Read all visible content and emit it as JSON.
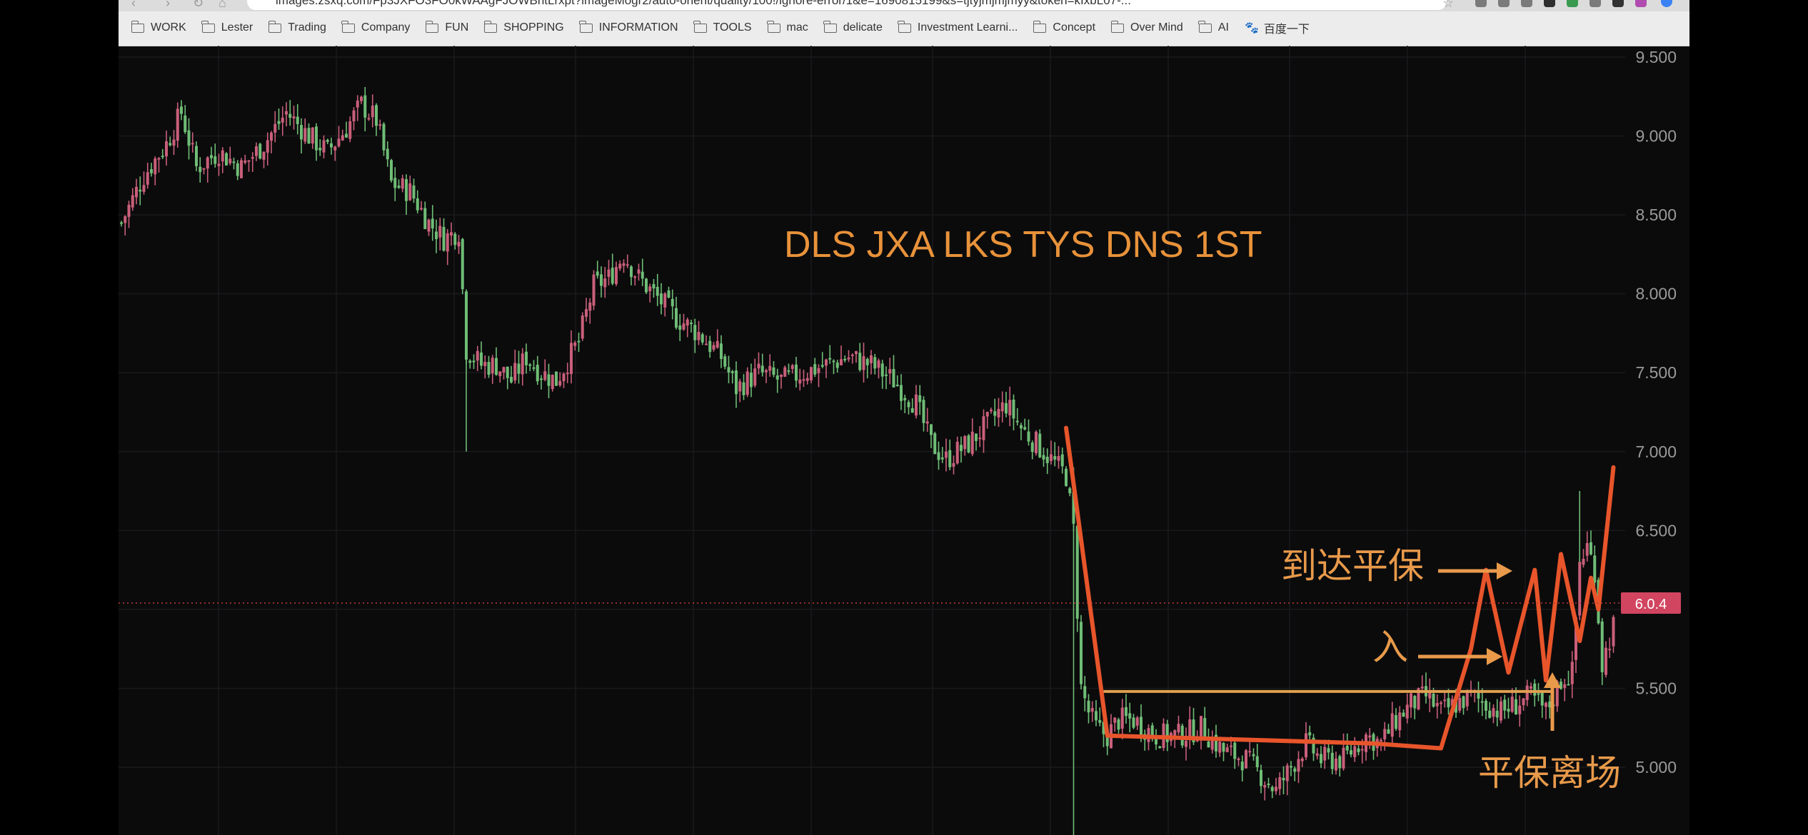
{
  "browser": {
    "url_text": "images.zsxq.com/Fp3JXFO3FO0kWAAgFJOWBhtLrxpt?imageMogr2/auto-orient/quality/100!/ignore-error/1&e=1690815199&s=tjtyjmjmjmyy&token=kIxbL07-...",
    "bookmarks": [
      {
        "label": "WORK",
        "icon": "folder-icon"
      },
      {
        "label": "Lester",
        "icon": "folder-icon"
      },
      {
        "label": "Trading",
        "icon": "folder-icon"
      },
      {
        "label": "Company",
        "icon": "folder-icon"
      },
      {
        "label": "FUN",
        "icon": "folder-icon"
      },
      {
        "label": "SHOPPING",
        "icon": "folder-icon"
      },
      {
        "label": "INFORMATION",
        "icon": "folder-icon"
      },
      {
        "label": "TOOLS",
        "icon": "folder-icon"
      },
      {
        "label": "mac",
        "icon": "folder-icon"
      },
      {
        "label": "delicate",
        "icon": "folder-icon"
      },
      {
        "label": "Investment Learni...",
        "icon": "folder-icon"
      },
      {
        "label": "Concept",
        "icon": "folder-icon"
      },
      {
        "label": "Over Mind",
        "icon": "folder-icon"
      },
      {
        "label": "AI",
        "icon": "folder-icon"
      },
      {
        "label": "百度一下",
        "icon": "baidu-paw-icon"
      }
    ]
  },
  "chart_data": {
    "type": "candlestick",
    "title": "DLS JXA LKS TYS DNS 1ST",
    "y_ticks": [
      "9.500",
      "9.000",
      "8.500",
      "8.000",
      "7.500",
      "7.000",
      "6.500",
      "5.500",
      "5.000"
    ],
    "ylim": [
      4.58,
      9.58
    ],
    "current_price_label": "6.0.4",
    "current_price_value": 6.04,
    "grid": true,
    "colors": {
      "up": "#c95f7a",
      "down": "#6fbd76",
      "annotation": "#e8552b",
      "text_annotation": "#e89a4a",
      "level": "#e0a050"
    },
    "close_path": [
      [
        0,
        8.45
      ],
      [
        6,
        8.75
      ],
      [
        12,
        8.95
      ],
      [
        16,
        9.15
      ],
      [
        20,
        8.8
      ],
      [
        26,
        8.9
      ],
      [
        32,
        8.8
      ],
      [
        38,
        8.95
      ],
      [
        44,
        9.15
      ],
      [
        50,
        9.0
      ],
      [
        55,
        8.9
      ],
      [
        60,
        9.05
      ],
      [
        64,
        9.2
      ],
      [
        68,
        9.1
      ],
      [
        72,
        8.7
      ],
      [
        77,
        8.65
      ],
      [
        82,
        8.45
      ],
      [
        86,
        8.35
      ],
      [
        90,
        8.4
      ],
      [
        92,
        7.65
      ],
      [
        96,
        7.55
      ],
      [
        100,
        7.55
      ],
      [
        104,
        7.45
      ],
      [
        108,
        7.6
      ],
      [
        112,
        7.5
      ],
      [
        116,
        7.45
      ],
      [
        122,
        7.7
      ],
      [
        126,
        8.05
      ],
      [
        130,
        8.1
      ],
      [
        134,
        8.25
      ],
      [
        138,
        8.1
      ],
      [
        142,
        8.0
      ],
      [
        148,
        7.85
      ],
      [
        154,
        7.75
      ],
      [
        160,
        7.6
      ],
      [
        164,
        7.4
      ],
      [
        170,
        7.5
      ],
      [
        176,
        7.45
      ],
      [
        182,
        7.5
      ],
      [
        188,
        7.55
      ],
      [
        194,
        7.6
      ],
      [
        200,
        7.55
      ],
      [
        206,
        7.45
      ],
      [
        212,
        7.3
      ],
      [
        216,
        7.05
      ],
      [
        220,
        6.95
      ],
      [
        226,
        7.05
      ],
      [
        232,
        7.2
      ],
      [
        236,
        7.3
      ],
      [
        240,
        7.15
      ],
      [
        244,
        7.05
      ],
      [
        248,
        6.95
      ],
      [
        252,
        6.85
      ],
      [
        254,
        6.5
      ],
      [
        256,
        5.5
      ],
      [
        258,
        5.35
      ],
      [
        260,
        5.25
      ],
      [
        263,
        5.2
      ],
      [
        266,
        5.3
      ],
      [
        270,
        5.3
      ],
      [
        276,
        5.2
      ],
      [
        282,
        5.2
      ],
      [
        288,
        5.25
      ],
      [
        294,
        5.1
      ],
      [
        300,
        5.05
      ],
      [
        304,
        4.95
      ],
      [
        308,
        4.85
      ],
      [
        312,
        5.0
      ],
      [
        316,
        5.15
      ],
      [
        320,
        5.05
      ],
      [
        326,
        5.05
      ],
      [
        332,
        5.2
      ],
      [
        336,
        5.15
      ],
      [
        340,
        5.3
      ],
      [
        344,
        5.4
      ],
      [
        348,
        5.45
      ],
      [
        352,
        5.35
      ],
      [
        356,
        5.4
      ],
      [
        360,
        5.45
      ],
      [
        364,
        5.4
      ],
      [
        368,
        5.35
      ],
      [
        372,
        5.4
      ],
      [
        376,
        5.45
      ],
      [
        380,
        5.35
      ],
      [
        384,
        5.55
      ],
      [
        387,
        5.6
      ],
      [
        389,
        6.3
      ],
      [
        391,
        6.4
      ],
      [
        393,
        6.25
      ],
      [
        395,
        5.65
      ],
      [
        398,
        5.9
      ]
    ],
    "annotations": {
      "arrive_breakeven": "到达平保",
      "entry": "入",
      "breakeven_exit": "平保离场"
    },
    "drawn_path": [
      [
        7.15,
        252
      ],
      [
        5.2,
        263
      ],
      [
        5.15,
        334
      ],
      [
        5.12,
        352
      ],
      [
        5.75,
        360
      ],
      [
        6.25,
        364
      ],
      [
        5.6,
        370
      ],
      [
        6.25,
        377
      ],
      [
        5.55,
        380
      ],
      [
        6.35,
        384
      ],
      [
        5.8,
        389
      ],
      [
        6.2,
        392
      ],
      [
        6.0,
        394
      ],
      [
        6.9,
        398
      ]
    ],
    "resistance_level": 5.48
  }
}
